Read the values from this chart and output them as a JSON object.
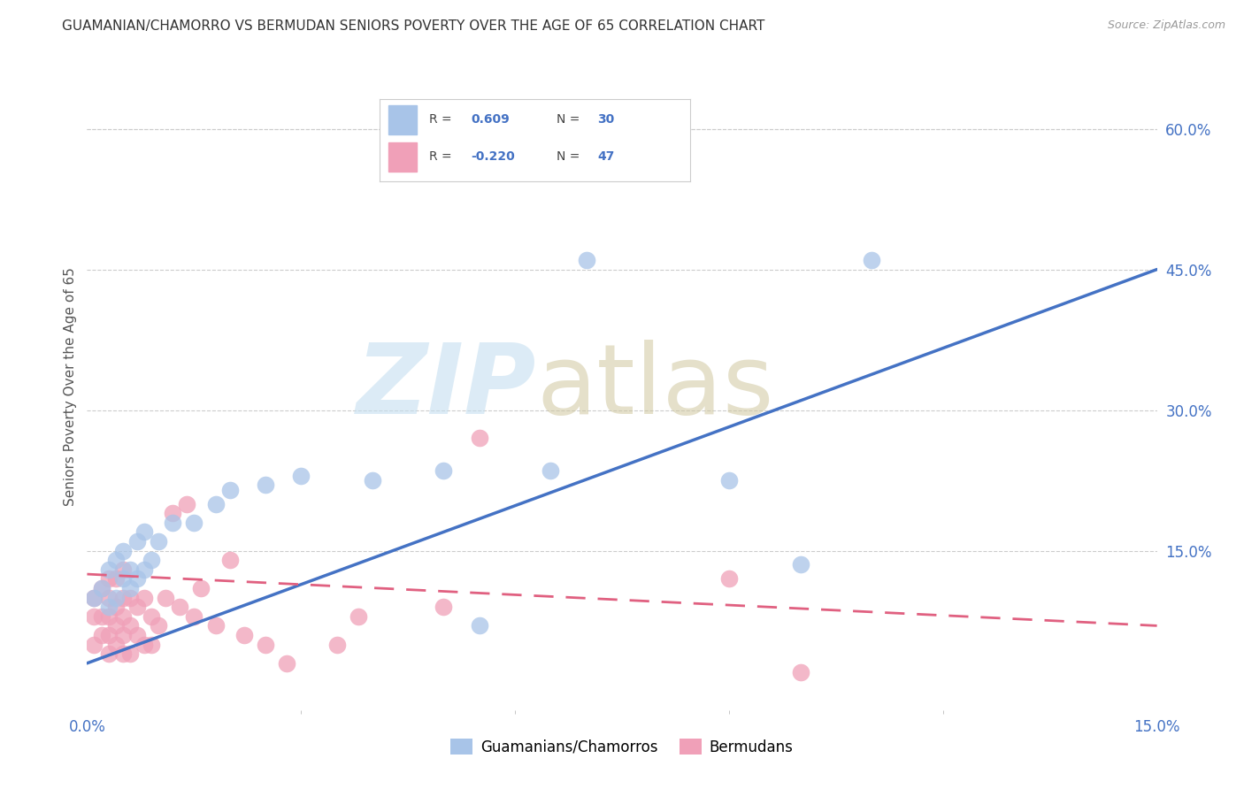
{
  "title": "GUAMANIAN/CHAMORRO VS BERMUDAN SENIORS POVERTY OVER THE AGE OF 65 CORRELATION CHART",
  "source": "Source: ZipAtlas.com",
  "ylabel": "Seniors Poverty Over the Age of 65",
  "xlim": [
    0.0,
    0.15
  ],
  "ylim": [
    -0.02,
    0.67
  ],
  "blue_color": "#a8c4e8",
  "pink_color": "#f0a0b8",
  "line_blue": "#4472c4",
  "line_pink": "#e06080",
  "text_blue": "#4472c4",
  "background": "#ffffff",
  "guam_R": 0.609,
  "guam_N": 30,
  "berm_R": -0.22,
  "berm_N": 47,
  "guam_x": [
    0.001,
    0.002,
    0.003,
    0.003,
    0.004,
    0.004,
    0.005,
    0.005,
    0.006,
    0.006,
    0.007,
    0.007,
    0.008,
    0.008,
    0.009,
    0.01,
    0.012,
    0.015,
    0.018,
    0.02,
    0.025,
    0.03,
    0.04,
    0.05,
    0.055,
    0.065,
    0.07,
    0.09,
    0.1,
    0.11
  ],
  "guam_y": [
    0.1,
    0.11,
    0.09,
    0.13,
    0.1,
    0.14,
    0.12,
    0.15,
    0.11,
    0.13,
    0.12,
    0.16,
    0.13,
    0.17,
    0.14,
    0.16,
    0.18,
    0.18,
    0.2,
    0.215,
    0.22,
    0.23,
    0.225,
    0.235,
    0.07,
    0.235,
    0.46,
    0.225,
    0.135,
    0.46
  ],
  "berm_x": [
    0.001,
    0.001,
    0.001,
    0.002,
    0.002,
    0.002,
    0.003,
    0.003,
    0.003,
    0.003,
    0.003,
    0.004,
    0.004,
    0.004,
    0.004,
    0.005,
    0.005,
    0.005,
    0.005,
    0.005,
    0.006,
    0.006,
    0.006,
    0.007,
    0.007,
    0.008,
    0.008,
    0.009,
    0.009,
    0.01,
    0.011,
    0.012,
    0.013,
    0.014,
    0.015,
    0.016,
    0.018,
    0.02,
    0.022,
    0.025,
    0.028,
    0.035,
    0.038,
    0.05,
    0.055,
    0.09,
    0.1
  ],
  "berm_y": [
    0.05,
    0.08,
    0.1,
    0.06,
    0.08,
    0.11,
    0.04,
    0.06,
    0.08,
    0.1,
    0.12,
    0.05,
    0.07,
    0.09,
    0.12,
    0.04,
    0.06,
    0.08,
    0.1,
    0.13,
    0.04,
    0.07,
    0.1,
    0.06,
    0.09,
    0.05,
    0.1,
    0.05,
    0.08,
    0.07,
    0.1,
    0.19,
    0.09,
    0.2,
    0.08,
    0.11,
    0.07,
    0.14,
    0.06,
    0.05,
    0.03,
    0.05,
    0.08,
    0.09,
    0.27,
    0.12,
    0.02
  ],
  "yticks_right": [
    0.15,
    0.3,
    0.45,
    0.6
  ],
  "ytick_labels_right": [
    "15.0%",
    "30.0%",
    "45.0%",
    "60.0%"
  ],
  "xtick_labels": [
    "0.0%",
    "15.0%"
  ]
}
